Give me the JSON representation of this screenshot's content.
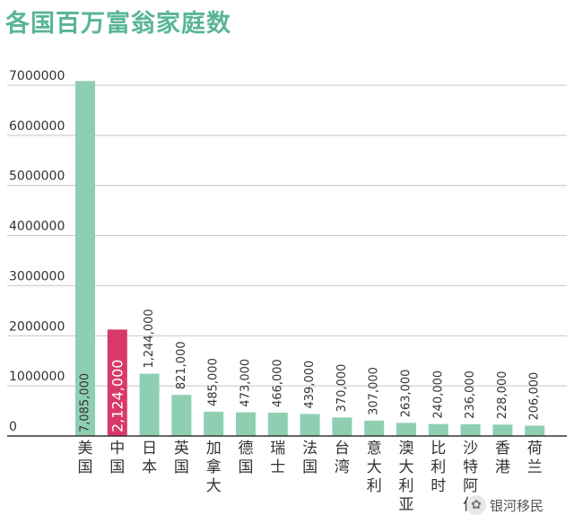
{
  "chart_data": {
    "type": "bar",
    "title": "各国百万富翁家庭数",
    "categories": [
      "美国",
      "中国",
      "日本",
      "英国",
      "加拿大",
      "德国",
      "瑞士",
      "法国",
      "台湾",
      "意大利",
      "澳大利亚",
      "比利时",
      "沙特阿伯",
      "香港",
      "荷兰"
    ],
    "values": [
      7085000,
      2124000,
      1244000,
      821000,
      485000,
      473000,
      466000,
      439000,
      370000,
      307000,
      263000,
      240000,
      236000,
      228000,
      206000
    ],
    "value_labels": [
      "7,085,000",
      "2,124,000",
      "1,244,000",
      "821,000",
      "485,000",
      "473,000",
      "466,000",
      "439,000",
      "370,000",
      "307,000",
      "263,000",
      "240,000",
      "236,000",
      "228,000",
      "206,000"
    ],
    "y_ticks": [
      0,
      1000000,
      2000000,
      3000000,
      4000000,
      5000000,
      6000000,
      7000000
    ],
    "y_tick_labels": [
      "0",
      "1000000",
      "2000000",
      "3000000",
      "4000000",
      "5000000",
      "6000000",
      "7000000"
    ],
    "ylim": [
      0,
      7000000
    ],
    "xlabel": "",
    "ylabel": "",
    "grid": true,
    "highlight_category": "中国",
    "colors": {
      "bar": "#8fcfb1",
      "highlight": "#d9386a",
      "grid": "#c4c4c4",
      "axis": "#333333",
      "title": "#58b596",
      "text": "#333333"
    }
  },
  "watermark": {
    "text": "银河移民",
    "icon": "wechat-icon"
  }
}
